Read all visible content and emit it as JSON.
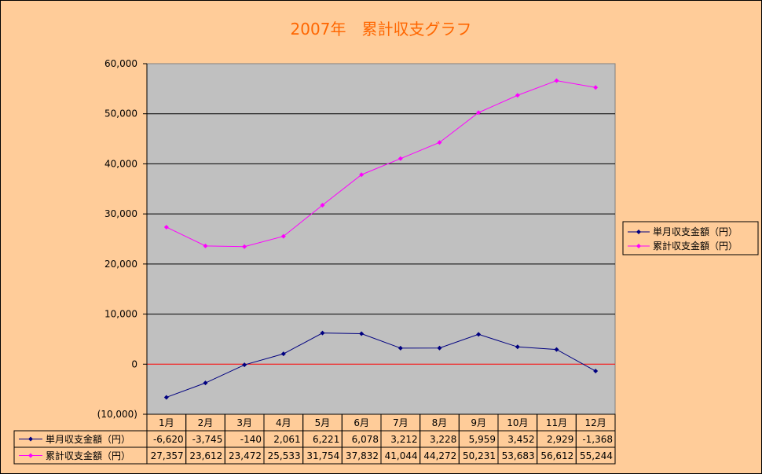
{
  "chart_data": {
    "type": "line",
    "title": "2007年　累計収支グラフ",
    "categories": [
      "1月",
      "2月",
      "3月",
      "4月",
      "5月",
      "6月",
      "7月",
      "8月",
      "9月",
      "10月",
      "11月",
      "12月"
    ],
    "series": [
      {
        "name": "単月収支金額（円）",
        "color": "#000080",
        "values": [
          -6620,
          -3745,
          -140,
          2061,
          6221,
          6078,
          3212,
          3228,
          5959,
          3452,
          2929,
          -1368
        ],
        "labels": [
          "-6,620",
          "-3,745",
          "-140",
          "2,061",
          "6,221",
          "6,078",
          "3,212",
          "3,228",
          "5,959",
          "3,452",
          "2,929",
          "-1,368"
        ]
      },
      {
        "name": "累計収支金額（円）",
        "color": "#ff00ff",
        "values": [
          27357,
          23612,
          23472,
          25533,
          31754,
          37832,
          41044,
          44272,
          50231,
          53683,
          56612,
          55244
        ],
        "labels": [
          "27,357",
          "23,612",
          "23,472",
          "25,533",
          "31,754",
          "37,832",
          "41,044",
          "44,272",
          "50,231",
          "53,683",
          "56,612",
          "55,244"
        ]
      }
    ],
    "ylim": [
      -10000,
      60000
    ],
    "yticks": [
      -10000,
      0,
      10000,
      20000,
      30000,
      40000,
      50000,
      60000
    ],
    "ytick_labels": [
      "(10,000)",
      "0",
      "10,000",
      "20,000",
      "30,000",
      "40,000",
      "50,000",
      "60,000"
    ],
    "grid": true,
    "legend": "right",
    "data_table": true,
    "colors": {
      "background": "#ffcc99",
      "plot_area": "#c0c0c0",
      "title": "#ff6600",
      "negative_tick": "#ff0000",
      "zero_line": "#ff0000"
    }
  }
}
